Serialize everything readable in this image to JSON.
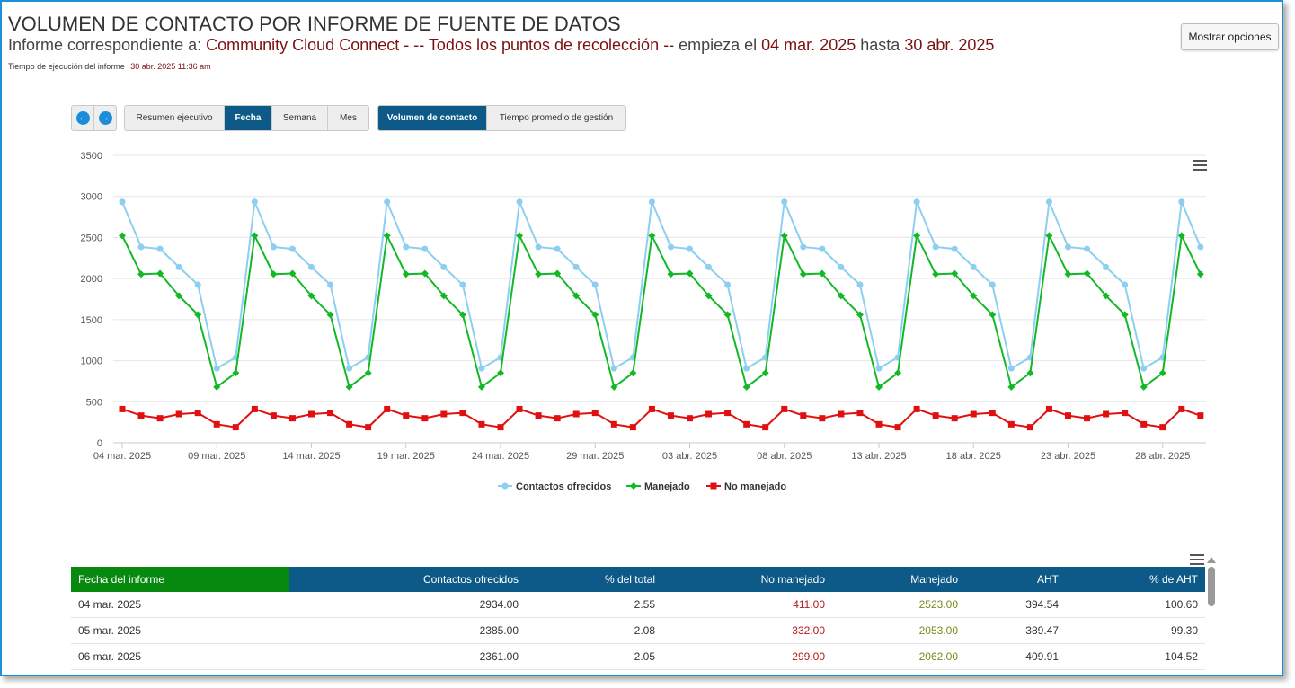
{
  "header": {
    "title": "VOLUMEN DE CONTACTO POR INFORME DE FUENTE DE DATOS",
    "subtitle_prefix": "Informe correspondiente a:",
    "subtitle_source": "Community Cloud Connect",
    "subtitle_points": " - -- Todos los puntos de recolección --",
    "subtitle_starts": "empieza el",
    "start_date": "04 mar. 2025",
    "subtitle_until": "hasta",
    "end_date": "30 abr. 2025",
    "runtime_label": "Tiempo de ejecución del informe",
    "runtime_value": "30 abr. 2025 11:36 am"
  },
  "options_button": "Mostrar opciones",
  "nav": {
    "prev_icon": "arrow-left-circle-icon",
    "next_icon": "arrow-right-circle-icon",
    "view_tabs": [
      {
        "label": "Resumen ejecutivo",
        "active": false
      },
      {
        "label": "Fecha",
        "active": true
      },
      {
        "label": "Semana",
        "active": false
      },
      {
        "label": "Mes",
        "active": false
      }
    ],
    "metric_tabs": [
      {
        "label": "Volumen de contacto",
        "active": true
      },
      {
        "label": "Tiempo promedio de gestión",
        "active": false
      }
    ]
  },
  "colors": {
    "offered": "#8ccff0",
    "handled": "#12b826",
    "not_handled": "#e01010",
    "header_blue": "#0d5a88",
    "header_green": "#07880e"
  },
  "chart_data": {
    "type": "line",
    "ylim": [
      0,
      3500
    ],
    "y_ticks": [
      0,
      500,
      1000,
      1500,
      2000,
      2500,
      3000,
      3500
    ],
    "x_start": "04 mar. 2025",
    "x_tick_labels": [
      "04 mar. 2025",
      "09 mar. 2025",
      "14 mar. 2025",
      "19 mar. 2025",
      "24 mar. 2025",
      "29 mar. 2025",
      "03 abr. 2025",
      "08 abr. 2025",
      "13 abr. 2025",
      "18 abr. 2025",
      "23 abr. 2025",
      "28 abr. 2025"
    ],
    "legend_position": "bottom-center",
    "grid": true,
    "series": [
      {
        "name": "Contactos ofrecidos",
        "marker": "circle",
        "values": [
          2934,
          2385,
          2361,
          2140,
          1925,
          906,
          1040,
          2934,
          2385,
          2361,
          2140,
          1925,
          906,
          1040,
          2934,
          2385,
          2361,
          2140,
          1925,
          906,
          1040,
          2934,
          2385,
          2361,
          2140,
          1925,
          906,
          1040,
          2934,
          2385,
          2361,
          2140,
          1925,
          906,
          1040,
          2934,
          2385,
          2361,
          2140,
          1925,
          906,
          1040,
          2934,
          2385,
          2361,
          2140,
          1925,
          906,
          1040,
          2934,
          2385,
          2361,
          2140,
          1925,
          906,
          1040,
          2934,
          2385
        ]
      },
      {
        "name": "Manejado",
        "marker": "diamond",
        "values": [
          2523,
          2053,
          2062,
          1790,
          1560,
          680,
          850,
          2523,
          2053,
          2062,
          1790,
          1560,
          680,
          850,
          2523,
          2053,
          2062,
          1790,
          1560,
          680,
          850,
          2523,
          2053,
          2062,
          1790,
          1560,
          680,
          850,
          2523,
          2053,
          2062,
          1790,
          1560,
          680,
          850,
          2523,
          2053,
          2062,
          1790,
          1560,
          680,
          850,
          2523,
          2053,
          2062,
          1790,
          1560,
          680,
          850,
          2523,
          2053,
          2062,
          1790,
          1560,
          680,
          850,
          2523,
          2053
        ]
      },
      {
        "name": "No manejado",
        "marker": "square",
        "values": [
          411,
          332,
          299,
          350,
          365,
          226,
          190,
          411,
          332,
          299,
          350,
          365,
          226,
          190,
          411,
          332,
          299,
          350,
          365,
          226,
          190,
          411,
          332,
          299,
          350,
          365,
          226,
          190,
          411,
          332,
          299,
          350,
          365,
          226,
          190,
          411,
          332,
          299,
          350,
          365,
          226,
          190,
          411,
          332,
          299,
          350,
          365,
          226,
          190,
          411,
          332,
          299,
          350,
          365,
          226,
          190,
          411,
          332
        ]
      }
    ]
  },
  "table": {
    "columns": [
      "Fecha del informe",
      "Contactos ofrecidos",
      "% del total",
      "No manejado",
      "Manejado",
      "AHT",
      "% de AHT"
    ],
    "rows": [
      [
        "04 mar. 2025",
        "2934.00",
        "2.55",
        "411.00",
        "2523.00",
        "394.54",
        "100.60"
      ],
      [
        "05 mar. 2025",
        "2385.00",
        "2.08",
        "332.00",
        "2053.00",
        "389.47",
        "99.30"
      ],
      [
        "06 mar. 2025",
        "2361.00",
        "2.05",
        "299.00",
        "2062.00",
        "409.91",
        "104.52"
      ]
    ]
  }
}
